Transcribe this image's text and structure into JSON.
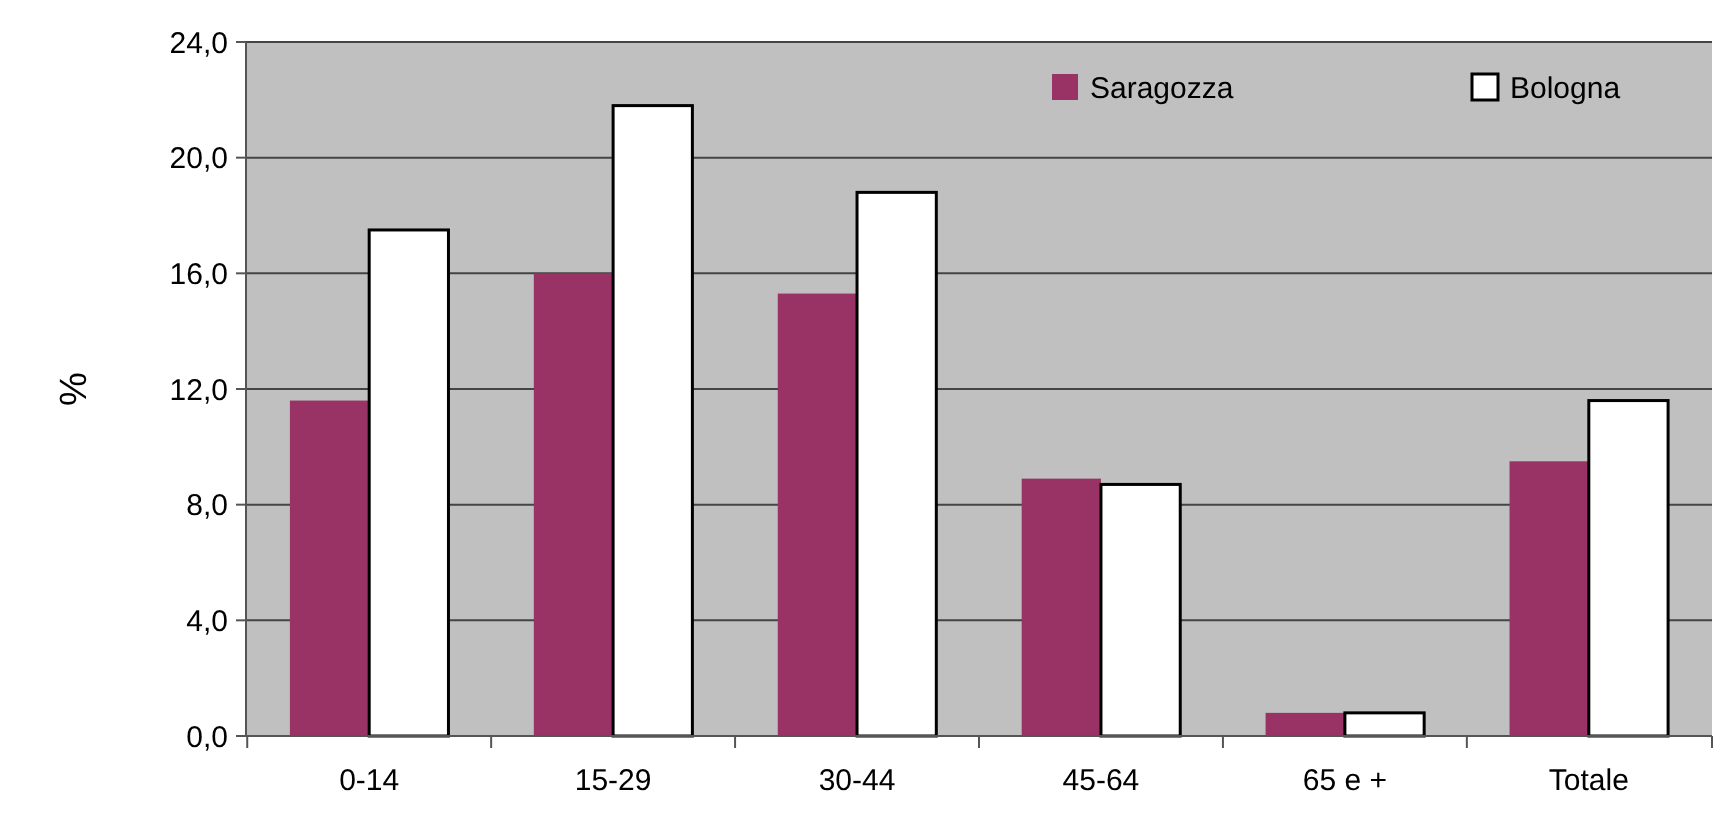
{
  "chart_data": {
    "type": "bar",
    "ylabel": "%",
    "categories": [
      "0-14",
      "15-29",
      "30-44",
      "45-64",
      "65 e +",
      "Totale"
    ],
    "series": [
      {
        "name": "Saragozza",
        "color": "#993366",
        "values": [
          11.6,
          16.0,
          15.3,
          8.9,
          0.8,
          9.5
        ]
      },
      {
        "name": "Bologna",
        "color": "#ffffff",
        "values": [
          17.5,
          21.8,
          18.8,
          8.7,
          0.8,
          11.6
        ]
      }
    ],
    "ylim": [
      0,
      24
    ],
    "yticks": [
      {
        "value": 0,
        "label": "0,0"
      },
      {
        "value": 4,
        "label": "4,0"
      },
      {
        "value": 8,
        "label": "8,0"
      },
      {
        "value": 12,
        "label": "12,0"
      },
      {
        "value": 16,
        "label": "16,0"
      },
      {
        "value": 20,
        "label": "20,0"
      },
      {
        "value": 24,
        "label": "24,0"
      }
    ],
    "grid": "y",
    "legend": "top right"
  }
}
